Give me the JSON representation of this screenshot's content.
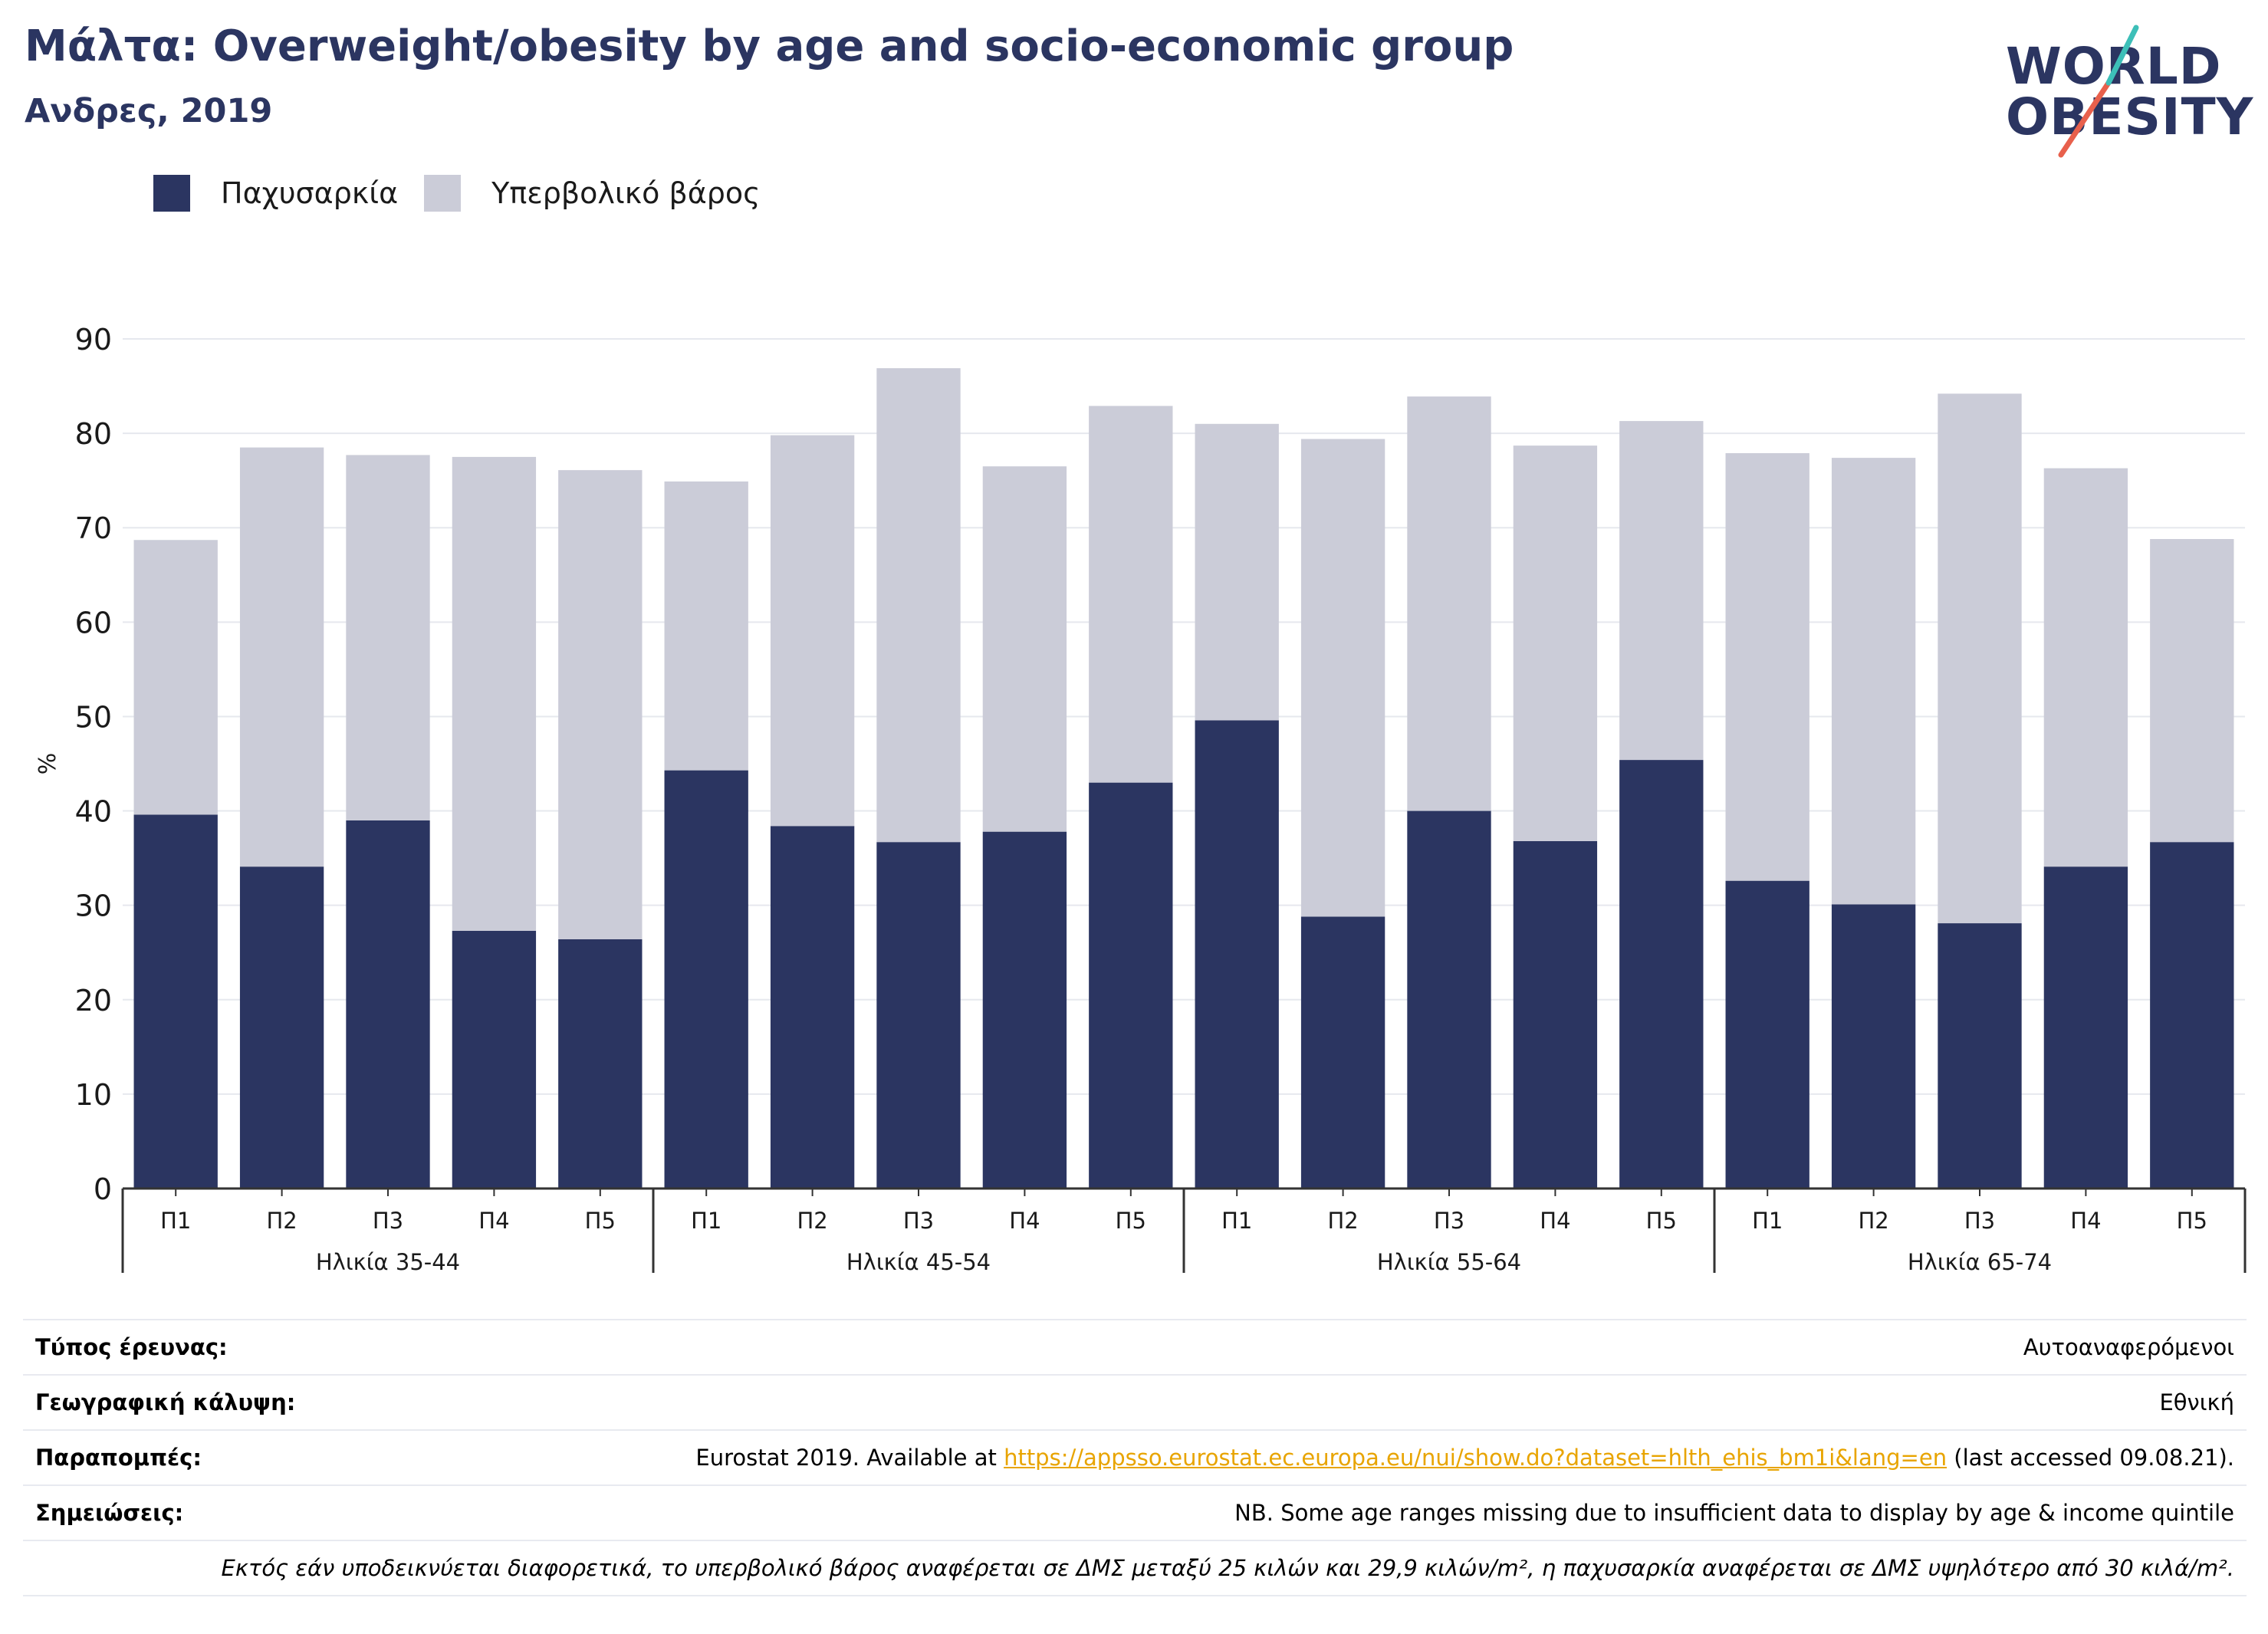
{
  "header": {
    "title": "Μάλτα: Overweight/obesity by age and socio-economic group",
    "subtitle": "Ανδρες, 2019"
  },
  "logo": {
    "line1": "WORLD",
    "line2": "OBESITY",
    "colors": {
      "text": "#2b3561",
      "slash_red": "#e8604c",
      "slash_teal": "#3dbfb8"
    }
  },
  "legend": {
    "items": [
      {
        "label": "Παχυσαρκία",
        "color": "#2b3561"
      },
      {
        "label": "Υπερβολικό βάρος",
        "color": "#cbccd8"
      }
    ]
  },
  "chart_data": {
    "type": "bar",
    "stacked": true,
    "ylabel": "%",
    "ylim": [
      0,
      90
    ],
    "yticks": [
      0,
      10,
      20,
      30,
      40,
      50,
      60,
      70,
      80,
      90
    ],
    "grid": true,
    "groups": [
      {
        "label": "Ηλικία 35-44",
        "categories": [
          "Π1",
          "Π2",
          "Π3",
          "Π4",
          "Π5"
        ]
      },
      {
        "label": "Ηλικία 45-54",
        "categories": [
          "Π1",
          "Π2",
          "Π3",
          "Π4",
          "Π5"
        ]
      },
      {
        "label": "Ηλικία 55-64",
        "categories": [
          "Π1",
          "Π2",
          "Π3",
          "Π4",
          "Π5"
        ]
      },
      {
        "label": "Ηλικία 65-74",
        "categories": [
          "Π1",
          "Π2",
          "Π3",
          "Π4",
          "Π5"
        ]
      }
    ],
    "series": [
      {
        "name": "Παχυσαρκία",
        "color": "#2b3561",
        "values": [
          39.6,
          34.1,
          39.0,
          27.3,
          26.4,
          44.3,
          38.4,
          36.7,
          37.8,
          43.0,
          49.6,
          28.8,
          40.0,
          36.8,
          45.4,
          32.6,
          30.1,
          28.1,
          34.1,
          36.7
        ]
      },
      {
        "name": "Υπερβολικό βάρος",
        "color": "#cbccd8",
        "values": [
          29.1,
          44.4,
          38.7,
          50.2,
          49.7,
          30.6,
          41.4,
          50.2,
          38.7,
          39.9,
          31.4,
          50.6,
          43.9,
          41.9,
          35.9,
          45.3,
          47.3,
          56.1,
          42.2,
          32.1
        ]
      }
    ]
  },
  "info": {
    "survey_type": {
      "label": "Τύπος έρευνας:",
      "value": "Αυτοαναφερόμενοι"
    },
    "coverage": {
      "label": "Γεωγραφική κάλυψη:",
      "value": "Εθνική"
    },
    "references": {
      "label": "Παραπομπές:",
      "prefix": "Eurostat 2019. Available at ",
      "link": "https://appsso.eurostat.ec.europa.eu/nui/show.do?dataset=hlth_ehis_bm1i&lang=en",
      "suffix": " (last accessed 09.08.21)."
    },
    "notes": {
      "label": "Σημειώσεις:",
      "value": "NB. Some age ranges missing due to insufficient data to display by age & income quintile"
    },
    "definition": "Εκτός εάν υποδεικνύεται διαφορετικά, το υπερβολικό βάρος αναφέρεται σε ΔΜΣ μεταξύ 25 κιλών και 29,9 κιλών/m², η παχυσαρκία αναφέρεται σε ΔΜΣ υψηλότερο από 30 κιλά/m²."
  }
}
